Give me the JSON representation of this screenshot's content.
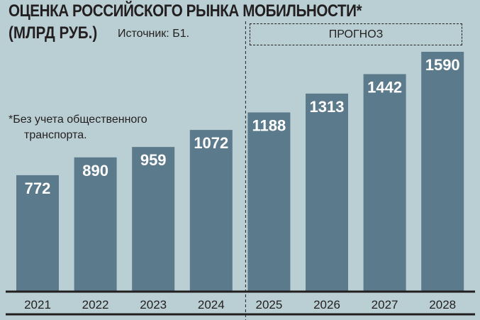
{
  "chart_data": {
    "type": "bar",
    "title": "ОЦЕНКА РОССИЙСКОГО РЫНКА МОБИЛЬНОСТИ*",
    "unit": "(МЛРД РУБ.)",
    "source": "Источник: Б1.",
    "note": [
      "*Без учета общественного",
      "транспорта."
    ],
    "forecast_label": "ПРОГНОЗ",
    "forecast_from": "2025",
    "categories": [
      "2021",
      "2022",
      "2023",
      "2024",
      "2025",
      "2026",
      "2027",
      "2028"
    ],
    "values": [
      772,
      890,
      959,
      1072,
      1188,
      1313,
      1442,
      1590
    ],
    "ylim": [
      0,
      1590
    ],
    "grid": false,
    "colors": {
      "background": "#bacfd3",
      "bar": "#5b7a8b",
      "label": "#ffffff"
    }
  }
}
